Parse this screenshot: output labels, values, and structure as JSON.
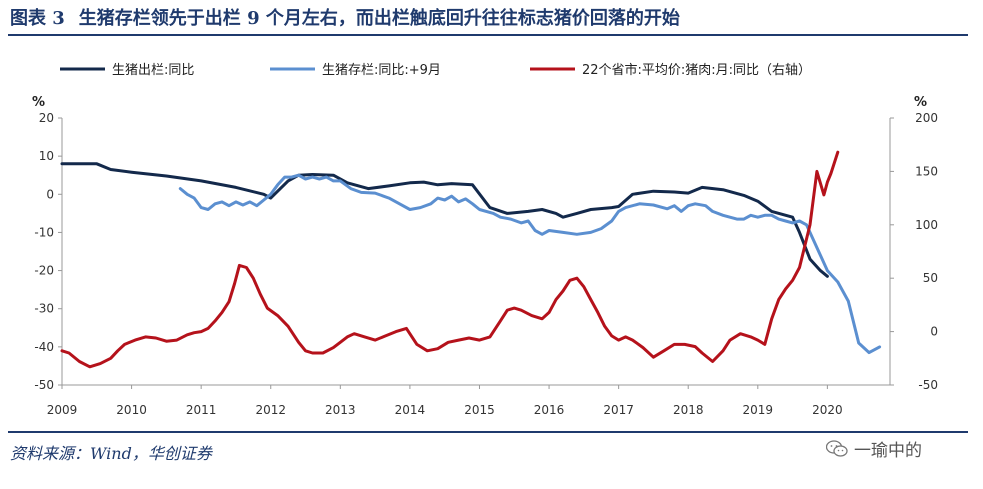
{
  "header": {
    "figure_label": "图表 3",
    "title": "生猪存栏领先于出栏 9 个月左右，而出栏触底回升往往标志猪价回落的开始"
  },
  "footer": {
    "source": "资料来源：Wind，华创证券",
    "watermark": "一瑜中的"
  },
  "colors": {
    "navy": "#13294b",
    "blue": "#5b8fd0",
    "red": "#b5121b",
    "rule": "#1f3a6d"
  },
  "chart_data": {
    "type": "line",
    "title": "生猪存栏领先于出栏 9 个月左右，而出栏触底回升往往标志猪价回落的开始",
    "y_unit_left": "%",
    "y_unit_right": "%",
    "ylim_left": [
      -50,
      20
    ],
    "ylim_right": [
      -50,
      200
    ],
    "yticks_left": [
      "20",
      "10",
      "0",
      "-10",
      "-20",
      "-30",
      "-40",
      "-50"
    ],
    "yticks_right": [
      "200",
      "150",
      "100",
      "50",
      "0",
      "-50"
    ],
    "xlim": [
      2009,
      2020.9
    ],
    "xticks": [
      "2009",
      "2010",
      "2011",
      "2012",
      "2013",
      "2014",
      "2015",
      "2016",
      "2017",
      "2018",
      "2019",
      "2020"
    ],
    "legend_position": "top",
    "series": [
      {
        "name": "生猪出栏:同比",
        "axis": "left",
        "color": "#13294b",
        "points": [
          [
            2009.0,
            8
          ],
          [
            2009.5,
            8
          ],
          [
            2009.7,
            6.5
          ],
          [
            2010.0,
            5.8
          ],
          [
            2010.5,
            4.8
          ],
          [
            2011.0,
            3.5
          ],
          [
            2011.5,
            1.8
          ],
          [
            2011.9,
            0
          ],
          [
            2012.0,
            -1
          ],
          [
            2012.25,
            3.5
          ],
          [
            2012.4,
            5
          ],
          [
            2012.6,
            5.2
          ],
          [
            2012.9,
            5
          ],
          [
            2013.1,
            3
          ],
          [
            2013.4,
            1.5
          ],
          [
            2013.7,
            2.2
          ],
          [
            2014.0,
            3
          ],
          [
            2014.2,
            3.2
          ],
          [
            2014.4,
            2.5
          ],
          [
            2014.6,
            2.8
          ],
          [
            2014.9,
            2.5
          ],
          [
            2015.15,
            -3.5
          ],
          [
            2015.4,
            -5
          ],
          [
            2015.7,
            -4.5
          ],
          [
            2015.9,
            -4
          ],
          [
            2016.1,
            -5
          ],
          [
            2016.2,
            -6
          ],
          [
            2016.4,
            -5
          ],
          [
            2016.6,
            -4
          ],
          [
            2016.9,
            -3.5
          ],
          [
            2017.0,
            -3.2
          ],
          [
            2017.2,
            0
          ],
          [
            2017.5,
            0.8
          ],
          [
            2017.8,
            0.6
          ],
          [
            2018.0,
            0.3
          ],
          [
            2018.2,
            1.8
          ],
          [
            2018.5,
            1.2
          ],
          [
            2018.8,
            -0.3
          ],
          [
            2019.0,
            -1.8
          ],
          [
            2019.2,
            -4.5
          ],
          [
            2019.5,
            -6
          ],
          [
            2019.6,
            -10
          ],
          [
            2019.75,
            -17
          ],
          [
            2019.9,
            -20
          ],
          [
            2020.0,
            -21.5
          ]
        ]
      },
      {
        "name": "生猪存栏:同比:+9月",
        "axis": "left",
        "color": "#5b8fd0",
        "points": [
          [
            2010.7,
            1.5
          ],
          [
            2010.8,
            0
          ],
          [
            2010.9,
            -1
          ],
          [
            2011.0,
            -3.5
          ],
          [
            2011.1,
            -4
          ],
          [
            2011.2,
            -2.5
          ],
          [
            2011.3,
            -2
          ],
          [
            2011.4,
            -3
          ],
          [
            2011.5,
            -2
          ],
          [
            2011.6,
            -2.8
          ],
          [
            2011.7,
            -2
          ],
          [
            2011.8,
            -3
          ],
          [
            2011.9,
            -1.5
          ],
          [
            2012.0,
            0
          ],
          [
            2012.1,
            2.5
          ],
          [
            2012.2,
            4.5
          ],
          [
            2012.3,
            4.5
          ],
          [
            2012.4,
            5
          ],
          [
            2012.5,
            4
          ],
          [
            2012.6,
            4.5
          ],
          [
            2012.7,
            4
          ],
          [
            2012.8,
            4.5
          ],
          [
            2012.9,
            3.5
          ],
          [
            2013.0,
            3.5
          ],
          [
            2013.15,
            1.5
          ],
          [
            2013.3,
            0.5
          ],
          [
            2013.5,
            0.3
          ],
          [
            2013.7,
            -1
          ],
          [
            2013.85,
            -2.5
          ],
          [
            2014.0,
            -4
          ],
          [
            2014.15,
            -3.5
          ],
          [
            2014.3,
            -2.5
          ],
          [
            2014.4,
            -1
          ],
          [
            2014.5,
            -1.5
          ],
          [
            2014.6,
            -0.5
          ],
          [
            2014.7,
            -2
          ],
          [
            2014.8,
            -1.2
          ],
          [
            2014.9,
            -2.5
          ],
          [
            2015.0,
            -4
          ],
          [
            2015.2,
            -5
          ],
          [
            2015.3,
            -6
          ],
          [
            2015.45,
            -6.5
          ],
          [
            2015.6,
            -7.5
          ],
          [
            2015.7,
            -7
          ],
          [
            2015.8,
            -9.5
          ],
          [
            2015.9,
            -10.5
          ],
          [
            2016.0,
            -9.5
          ],
          [
            2016.2,
            -10
          ],
          [
            2016.4,
            -10.5
          ],
          [
            2016.6,
            -10
          ],
          [
            2016.75,
            -9
          ],
          [
            2016.9,
            -7
          ],
          [
            2017.0,
            -4.5
          ],
          [
            2017.1,
            -3.5
          ],
          [
            2017.3,
            -2.5
          ],
          [
            2017.5,
            -2.8
          ],
          [
            2017.7,
            -3.8
          ],
          [
            2017.8,
            -3
          ],
          [
            2017.9,
            -4.5
          ],
          [
            2018.0,
            -3
          ],
          [
            2018.1,
            -2.5
          ],
          [
            2018.25,
            -3
          ],
          [
            2018.35,
            -4.5
          ],
          [
            2018.5,
            -5.5
          ],
          [
            2018.7,
            -6.5
          ],
          [
            2018.8,
            -6.5
          ],
          [
            2018.9,
            -5.5
          ],
          [
            2019.0,
            -6
          ],
          [
            2019.1,
            -5.5
          ],
          [
            2019.2,
            -5.5
          ],
          [
            2019.3,
            -6.5
          ],
          [
            2019.4,
            -7
          ],
          [
            2019.5,
            -7.5
          ],
          [
            2019.6,
            -7
          ],
          [
            2019.7,
            -8
          ],
          [
            2019.8,
            -12
          ],
          [
            2019.9,
            -16
          ],
          [
            2020.0,
            -20
          ],
          [
            2020.15,
            -23
          ],
          [
            2020.3,
            -28
          ],
          [
            2020.45,
            -39
          ],
          [
            2020.6,
            -41.5
          ],
          [
            2020.75,
            -40
          ]
        ]
      },
      {
        "name": "22个省市:平均价:猪肉:月:同比（右轴）",
        "axis": "right",
        "color": "#b5121b",
        "points": [
          [
            2009.0,
            -18
          ],
          [
            2009.1,
            -20
          ],
          [
            2009.25,
            -28
          ],
          [
            2009.4,
            -33
          ],
          [
            2009.55,
            -30
          ],
          [
            2009.7,
            -25
          ],
          [
            2009.8,
            -18
          ],
          [
            2009.9,
            -12
          ],
          [
            2010.05,
            -8
          ],
          [
            2010.2,
            -5
          ],
          [
            2010.35,
            -6
          ],
          [
            2010.5,
            -9
          ],
          [
            2010.65,
            -8
          ],
          [
            2010.8,
            -3
          ],
          [
            2010.9,
            -1
          ],
          [
            2011.0,
            0
          ],
          [
            2011.1,
            3
          ],
          [
            2011.2,
            10
          ],
          [
            2011.3,
            18
          ],
          [
            2011.4,
            28
          ],
          [
            2011.48,
            45
          ],
          [
            2011.55,
            62
          ],
          [
            2011.65,
            60
          ],
          [
            2011.75,
            50
          ],
          [
            2011.85,
            35
          ],
          [
            2011.95,
            22
          ],
          [
            2012.1,
            15
          ],
          [
            2012.25,
            5
          ],
          [
            2012.4,
            -10
          ],
          [
            2012.5,
            -18
          ],
          [
            2012.6,
            -20
          ],
          [
            2012.75,
            -20
          ],
          [
            2012.9,
            -15
          ],
          [
            2013.0,
            -10
          ],
          [
            2013.1,
            -5
          ],
          [
            2013.2,
            -2
          ],
          [
            2013.35,
            -5
          ],
          [
            2013.5,
            -8
          ],
          [
            2013.65,
            -4
          ],
          [
            2013.8,
            0
          ],
          [
            2013.95,
            3
          ],
          [
            2014.1,
            -12
          ],
          [
            2014.25,
            -18
          ],
          [
            2014.4,
            -16
          ],
          [
            2014.55,
            -10
          ],
          [
            2014.7,
            -8
          ],
          [
            2014.85,
            -6
          ],
          [
            2015.0,
            -8
          ],
          [
            2015.15,
            -5
          ],
          [
            2015.3,
            10
          ],
          [
            2015.4,
            20
          ],
          [
            2015.5,
            22
          ],
          [
            2015.6,
            20
          ],
          [
            2015.75,
            15
          ],
          [
            2015.9,
            12
          ],
          [
            2016.0,
            18
          ],
          [
            2016.1,
            30
          ],
          [
            2016.2,
            38
          ],
          [
            2016.3,
            48
          ],
          [
            2016.4,
            50
          ],
          [
            2016.5,
            42
          ],
          [
            2016.6,
            30
          ],
          [
            2016.7,
            18
          ],
          [
            2016.8,
            5
          ],
          [
            2016.9,
            -4
          ],
          [
            2017.0,
            -8
          ],
          [
            2017.1,
            -5
          ],
          [
            2017.2,
            -8
          ],
          [
            2017.35,
            -15
          ],
          [
            2017.5,
            -24
          ],
          [
            2017.65,
            -18
          ],
          [
            2017.8,
            -12
          ],
          [
            2017.95,
            -12
          ],
          [
            2018.1,
            -14
          ],
          [
            2018.2,
            -20
          ],
          [
            2018.35,
            -28
          ],
          [
            2018.5,
            -18
          ],
          [
            2018.6,
            -8
          ],
          [
            2018.75,
            -2
          ],
          [
            2018.9,
            -5
          ],
          [
            2019.0,
            -8
          ],
          [
            2019.1,
            -12
          ],
          [
            2019.2,
            12
          ],
          [
            2019.3,
            30
          ],
          [
            2019.4,
            40
          ],
          [
            2019.5,
            48
          ],
          [
            2019.6,
            60
          ],
          [
            2019.75,
            100
          ],
          [
            2019.85,
            150
          ],
          [
            2019.95,
            128
          ],
          [
            2020.0,
            140
          ],
          [
            2020.05,
            148
          ],
          [
            2020.15,
            168
          ]
        ]
      }
    ]
  }
}
